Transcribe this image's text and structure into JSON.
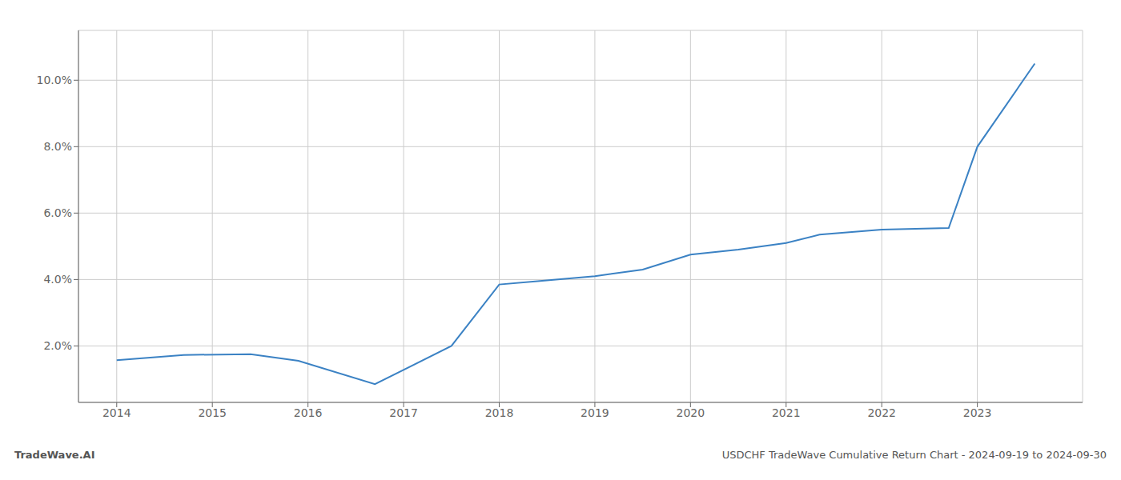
{
  "chart_data": {
    "type": "line",
    "x": [
      2014.0,
      2014.7,
      2015.4,
      2015.9,
      2016.7,
      2017.5,
      2018.0,
      2018.4,
      2019.0,
      2019.5,
      2020.0,
      2020.5,
      2021.0,
      2021.35,
      2022.0,
      2022.7,
      2023.0,
      2023.6
    ],
    "values": [
      1.57,
      1.73,
      1.75,
      1.55,
      0.85,
      2.0,
      3.85,
      3.95,
      4.1,
      4.3,
      4.75,
      4.9,
      5.1,
      5.35,
      5.5,
      5.55,
      8.0,
      10.5
    ],
    "color": "#3b82c4",
    "xlim": [
      2013.6,
      2024.1
    ],
    "xticks": [
      2014,
      2015,
      2016,
      2017,
      2018,
      2019,
      2020,
      2021,
      2022,
      2023
    ],
    "ylim": [
      0.3,
      11.5
    ],
    "yticks": [
      {
        "value": 2.0,
        "label": "2.0%"
      },
      {
        "value": 4.0,
        "label": "4.0%"
      },
      {
        "value": 6.0,
        "label": "6.0%"
      },
      {
        "value": 8.0,
        "label": "8.0%"
      },
      {
        "value": 10.0,
        "label": "10.0%"
      }
    ],
    "grid": true,
    "annotations": [
      "TradeWave.AI",
      "USDCHF TradeWave Cumulative Return Chart - 2024-09-19 to 2024-09-30"
    ]
  }
}
